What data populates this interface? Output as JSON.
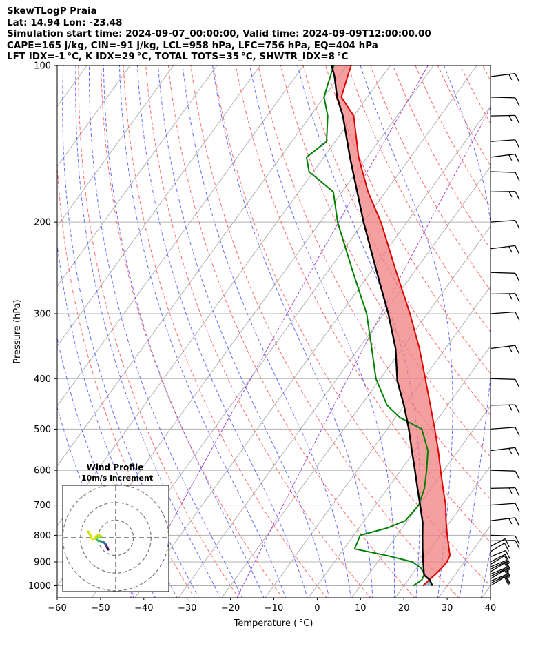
{
  "header": {
    "line1": "SkewTLogP Praia",
    "line2": "Lat: 14.94   Lon: -23.48",
    "line3": "Simulation start time: 2024-09-07_00:00:00, Valid time: 2024-09-09T12:00:00.00",
    "line4": "CAPE=165 j/kg, CIN=-91 j/kg, LCL=958 hPa, LFC=756 hPa, EQ=404 hPa",
    "line5": "LFT IDX=-1 °C, K IDX=29 °C, TOTAL TOTS=35 °C, SHWTR_IDX=8 °C"
  },
  "chart_data": {
    "type": "line",
    "subtype": "skew-T log-P",
    "xlabel": "Temperature ( °C)",
    "ylabel": "Pressure (hPa)",
    "xlim": [
      -60,
      40
    ],
    "ylim": [
      1050,
      100
    ],
    "y_scale": "log",
    "x_ticks": [
      -60,
      -50,
      -40,
      -30,
      -20,
      -10,
      0,
      10,
      20,
      30,
      40
    ],
    "y_ticks": [
      1000,
      900,
      800,
      700,
      600,
      500,
      400,
      300,
      200,
      100
    ],
    "x_tick_labels": [
      "−60",
      "−50",
      "−40",
      "−30",
      "−20",
      "−10",
      "0",
      "10",
      "20",
      "30",
      "40"
    ],
    "grid": true,
    "colors": {
      "temperature": "#e00000",
      "dewpoint": "#008000",
      "parcel": "#000000",
      "cape_fill": "#7fb0d4",
      "cin_fill": "#f08080",
      "dry_adiabats": "#ff5050",
      "moist_adiabats": "#4a55ff",
      "mixing_ratio": "#9a30c8",
      "isotherms": "#999999"
    },
    "series": [
      {
        "key": "temperature",
        "pressure": [
          1000,
          975,
          950,
          925,
          900,
          875,
          850,
          800,
          750,
          700,
          650,
          600,
          550,
          500,
          450,
          400,
          350,
          300,
          250,
          200,
          175,
          150,
          125,
          115,
          105,
          100
        ],
        "values": [
          24.4,
          24.9,
          25.4,
          25.8,
          26.0,
          25.6,
          24.3,
          21.6,
          18.9,
          16.2,
          12.8,
          9.2,
          5.4,
          1.0,
          -4.0,
          -9.6,
          -16.0,
          -24.0,
          -34.0,
          -46.0,
          -54.0,
          -62.0,
          -70.0,
          -76.0,
          -78.0,
          -79.0
        ]
      },
      {
        "key": "dewpoint",
        "pressure": [
          1000,
          975,
          950,
          925,
          900,
          875,
          850,
          800,
          775,
          750,
          700,
          650,
          600,
          550,
          500,
          475,
          450,
          400,
          350,
          300,
          250,
          200,
          175,
          160,
          150,
          140,
          125,
          115,
          105,
          100
        ],
        "values": [
          22.2,
          23.2,
          22.8,
          21.0,
          18.0,
          11.0,
          2.5,
          1.5,
          6.5,
          9.5,
          10.0,
          8.5,
          6.0,
          3.0,
          -2.0,
          -9.0,
          -14.0,
          -21.0,
          -27.0,
          -34.0,
          -44.0,
          -56.0,
          -62.0,
          -71.0,
          -74.0,
          -72.0,
          -76.0,
          -80.0,
          -82.0,
          -83.0
        ]
      },
      {
        "key": "parcel",
        "pressure": [
          1000,
          975,
          958,
          950,
          900,
          850,
          800,
          756,
          700,
          650,
          600,
          550,
          500,
          450,
          404,
          350,
          300,
          250,
          200,
          175,
          150,
          125,
          115,
          105,
          100
        ],
        "values": [
          26.6,
          25.0,
          23.3,
          22.7,
          20.5,
          18.2,
          15.9,
          13.8,
          10.3,
          6.9,
          3.3,
          -0.7,
          -5.0,
          -10.1,
          -15.7,
          -21.5,
          -29.0,
          -38.5,
          -50.0,
          -56.5,
          -64.0,
          -72.5,
          -77.0,
          -81.0,
          -83.5
        ]
      }
    ],
    "wind_barbs_pressure": [
      1000,
      990,
      980,
      970,
      960,
      950,
      940,
      930,
      920,
      910,
      900,
      880,
      860,
      840,
      820,
      800,
      750,
      700,
      650,
      600,
      550,
      500,
      450,
      400,
      350,
      300,
      275,
      250,
      225,
      200,
      175,
      160,
      150,
      140,
      125,
      115,
      105
    ],
    "hodograph": {
      "title": "Wind Profile",
      "subtitle": "10m/s increment",
      "rings": [
        10,
        20,
        30
      ]
    }
  }
}
